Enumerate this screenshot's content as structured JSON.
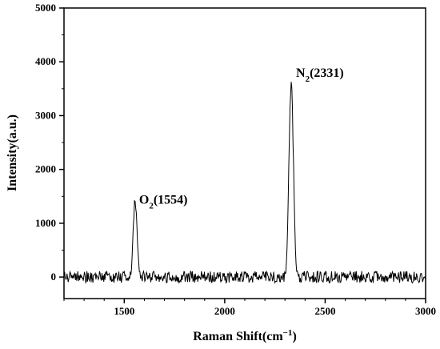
{
  "chart_data": {
    "type": "line",
    "title": "",
    "xlabel": {
      "prefix": "Raman Shift(cm",
      "superscript": "−1",
      "suffix": ")"
    },
    "ylabel": "Intensity(a.u.)",
    "xlim": [
      1200,
      3000
    ],
    "ylim": [
      -400,
      5000
    ],
    "x_ticks": [
      1500,
      2000,
      2500,
      3000
    ],
    "x_tick_labels": [
      "1500",
      "2000",
      "2500",
      "3000"
    ],
    "x_minor_step": 100,
    "y_ticks": [
      0,
      1000,
      2000,
      3000,
      4000,
      5000
    ],
    "y_tick_labels": [
      "0",
      "1000",
      "2000",
      "3000",
      "4000",
      "5000"
    ],
    "y_minor_step": 500,
    "grid": false,
    "legend": "none",
    "line_color": "#000000",
    "noise_amplitude": 110,
    "peaks": [
      {
        "center": 1554,
        "height": 1450,
        "width": 9
      },
      {
        "center": 2331,
        "height": 3600,
        "width": 11
      }
    ],
    "series": [
      {
        "x_start": 1200,
        "x_end": 3000,
        "x_step": 3
      }
    ],
    "annotations": [
      {
        "base": "O",
        "subscript": "2",
        "value": "(1554)",
        "x": 1554,
        "y": 1450
      },
      {
        "base": "N",
        "subscript": "2",
        "value": "(2331)",
        "x": 2331,
        "y": 3600
      }
    ]
  }
}
